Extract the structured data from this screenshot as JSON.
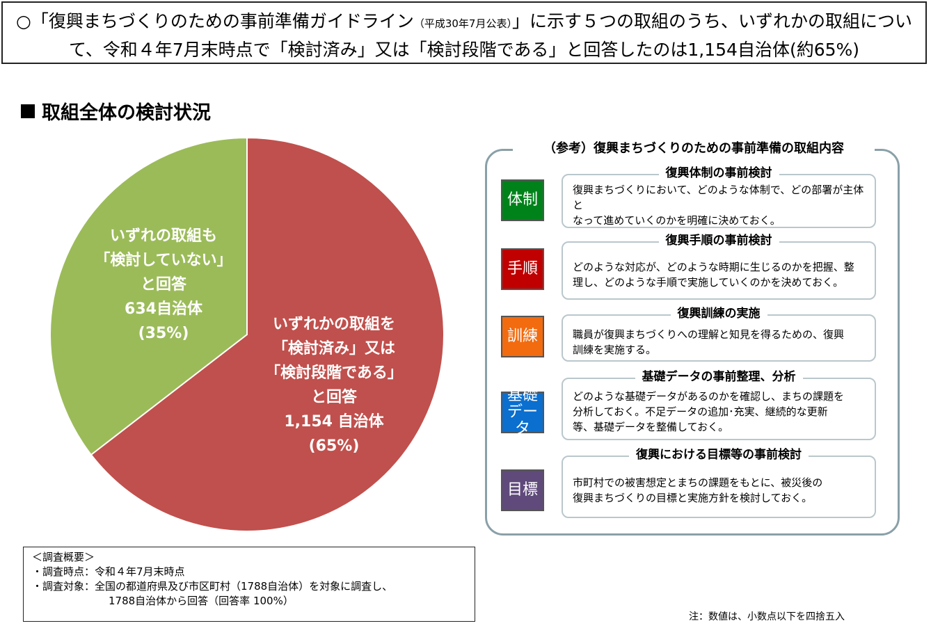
{
  "headline": {
    "part1": "○「復興まちづくりのための事前準備ガイドライン",
    "small": "（平成30年7月公表）",
    "part2": "」に示す５つの取組のうち、いずれかの取組について、令和４年7月末時点で「検討済み」又は「検討段階である」と回答したのは1,154自治体(約65%)"
  },
  "section_title": "取組全体の検討状況",
  "chart_data": {
    "type": "pie",
    "title": "取組全体の検討状況",
    "slices": [
      {
        "name": "検討済み／検討段階",
        "value": 1154,
        "percent": 65,
        "color": "#c0504d",
        "label_lines": [
          "いずれかの取組を",
          "「検討済み」又は",
          "「検討段階である」",
          "と回答",
          "1,154 自治体",
          "(65%)"
        ]
      },
      {
        "name": "検討していない",
        "value": 634,
        "percent": 35,
        "color": "#9bbb59",
        "label_lines": [
          "いずれの取組も",
          "「検討していない」",
          "と回答",
          "634自治体",
          "(35%)"
        ]
      }
    ]
  },
  "reference": {
    "title": "（参考）復興まちづくりのための事前準備の取組内容",
    "items": [
      {
        "badge": "体制",
        "color": "#00821a",
        "title": "復興体制の事前検討",
        "lines": [
          "復興まちづくりにおいて、どのような体制で、どの部署が主体と",
          "なって進めていくのかを明確に決めておく。"
        ]
      },
      {
        "badge": "手順",
        "color": "#c00000",
        "title": "復興手順の事前検討",
        "lines": [
          "どのような対応が、どのような時期に生じるのかを把握、整",
          "理し、どのような手順で実施していくのかを決めておく。"
        ]
      },
      {
        "badge": "訓練",
        "color": "#f26b0f",
        "title": "復興訓練の実施",
        "lines": [
          "職員が復興まちづくりへの理解と知見を得るための、復興",
          "訓練を実施する。"
        ]
      },
      {
        "badge1": "基礎",
        "badge2": "データ",
        "color": "#0a6fcf",
        "title": "基礎データの事前整理、分析",
        "lines": [
          "どのような基礎データがあるのかを確認し、まちの課題を",
          "分析しておく。不足データの追加･充実、継続的な更新",
          "等、基礎データを整備しておく。"
        ]
      },
      {
        "badge": "目標",
        "color": "#604a7b",
        "title": "復興における目標等の事前検討",
        "lines": [
          "市町村での被害想定とまちの課題をもとに、被災後の",
          "復興まちづくりの目標と実施方針を検討しておく。"
        ]
      }
    ]
  },
  "survey": {
    "heading": "＜調査概要＞",
    "time_label": "・調査時点：令和４年7月末時点",
    "target_label": "・調査対象：全国の都道府県及び市区町村（1788自治体）を対象に調査し、",
    "target_line2": "1788自治体から回答（回答率 100%）"
  },
  "note": "注：数値は、小数点以下を四捨五入"
}
